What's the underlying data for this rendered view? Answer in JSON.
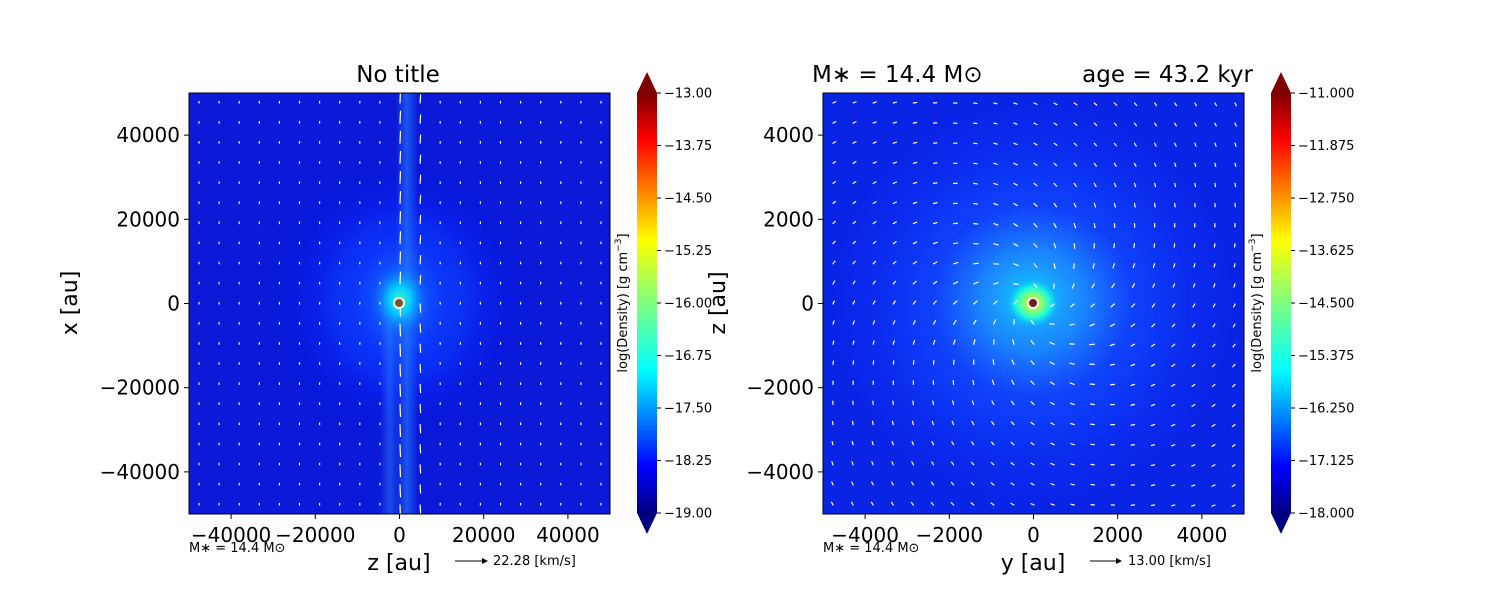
{
  "chart_data": [
    {
      "type": "heatmap",
      "title": "No title",
      "xlabel": "z [au]",
      "ylabel": "x [au]",
      "xlim": [
        -50000,
        50000
      ],
      "ylim": [
        -50000,
        50000
      ],
      "xticks": [
        "−40000",
        "−20000",
        "0",
        "20000",
        "40000"
      ],
      "xtick_values": [
        -40000,
        -20000,
        0,
        20000,
        40000
      ],
      "yticks": [
        "40000",
        "20000",
        "0",
        "−20000",
        "−40000"
      ],
      "ytick_values": [
        40000,
        20000,
        0,
        -20000,
        -40000
      ],
      "colorbar": {
        "label": "log(Density) [g cm$^{-3}$]",
        "label_text": "log(Density) [g cm",
        "label_sup": "−3",
        "label_end": "]",
        "range": [
          -19.0,
          -13.0
        ],
        "ticks": [
          "−13.00",
          "−13.75",
          "−14.50",
          "−15.25",
          "−16.00",
          "−16.75",
          "−17.50",
          "−18.25",
          "−19.00"
        ],
        "tick_values": [
          -13.0,
          -13.75,
          -14.5,
          -15.25,
          -16.0,
          -16.75,
          -17.5,
          -18.25,
          -19.0
        ]
      },
      "annotation_mass": "M∗ = 14.4 M⊙",
      "velocity_key": "22.28 [km/s]",
      "star_position": [
        -500,
        0
      ]
    },
    {
      "type": "heatmap",
      "title_left": "M∗  = 14.4 M⊙",
      "title_right": "age = 43.2 kyr",
      "xlabel": "y [au]",
      "ylabel": "z [au]",
      "xlim": [
        -5000,
        5000
      ],
      "ylim": [
        -5000,
        5000
      ],
      "xticks": [
        "−4000",
        "−2000",
        "0",
        "2000",
        "4000"
      ],
      "xtick_values": [
        -4000,
        -2000,
        0,
        2000,
        4000
      ],
      "yticks": [
        "4000",
        "2000",
        "0",
        "−2000",
        "−4000"
      ],
      "ytick_values": [
        4000,
        2000,
        0,
        -2000,
        -4000
      ],
      "colorbar": {
        "label": "log(Density) [g cm$^{-3}$]",
        "label_text": "log(Density) [g cm",
        "label_sup": "−3",
        "label_end": "]",
        "range": [
          -18.0,
          -11.0
        ],
        "ticks": [
          "−11.000",
          "−11.875",
          "−12.750",
          "−13.625",
          "−14.500",
          "−15.375",
          "−16.250",
          "−17.125",
          "−18.000"
        ],
        "tick_values": [
          -11.0,
          -11.875,
          -12.75,
          -13.625,
          -14.5,
          -15.375,
          -16.25,
          -17.125,
          -18.0
        ]
      },
      "annotation_mass": "M∗ = 14.4 M⊙",
      "velocity_key": "13.00 [km/s]",
      "star_position": [
        0,
        0
      ]
    }
  ],
  "colors": {
    "jet": [
      "#00007f",
      "#0000ff",
      "#007fff",
      "#00ffff",
      "#7fff7f",
      "#ffff00",
      "#ff7f00",
      "#ff0000",
      "#7f0000"
    ]
  }
}
